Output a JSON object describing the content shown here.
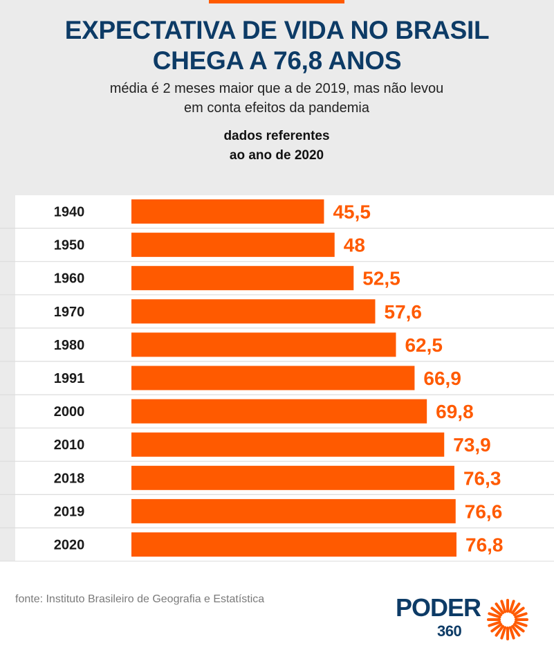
{
  "header": {
    "title_line1": "EXPECTATIVA DE VIDA NO BRASIL",
    "title_line2": "CHEGA A 76,8 ANOS",
    "subtitle_line1": "média é 2 meses maior que a de 2019, mas não levou",
    "subtitle_line2": "em conta efeitos da pandemia",
    "note_line1": "dados referentes",
    "note_line2": "ao ano de 2020"
  },
  "footer": {
    "source": "fonte: Instituto Brasileiro de Geografia e Estatística",
    "logo_word": "PODER",
    "logo_number": "360"
  },
  "colors": {
    "accent": "#ff5a00",
    "title": "#0d3b66",
    "background": "#ebebeb"
  },
  "chart_data": {
    "type": "bar",
    "orientation": "horizontal",
    "categories": [
      "1940",
      "1950",
      "1960",
      "1970",
      "1980",
      "1991",
      "2000",
      "2010",
      "2018",
      "2019",
      "2020"
    ],
    "values": [
      45.5,
      48,
      52.5,
      57.6,
      62.5,
      66.9,
      69.8,
      73.9,
      76.3,
      76.6,
      76.8
    ],
    "value_labels": [
      "45,5",
      "48",
      "52,5",
      "57,6",
      "62,5",
      "66,9",
      "69,8",
      "73,9",
      "76,3",
      "76,6",
      "76,8"
    ],
    "xlim": [
      0,
      76.8
    ],
    "grid": false,
    "legend": "none"
  }
}
